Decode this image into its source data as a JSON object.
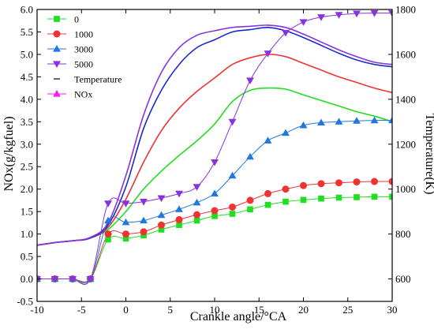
{
  "chart_data": {
    "type": "line",
    "xlabel": "Crankle angle/°CA",
    "ylabel_left": "NOx(g/kgfuel)",
    "ylabel_right": "Temperature(K)",
    "xlim": [
      -10,
      30
    ],
    "ylim_left": [
      -0.5,
      6.0
    ],
    "ylim_right": [
      500,
      1800
    ],
    "x_ticks": [
      -10,
      -5,
      0,
      5,
      10,
      15,
      20,
      25,
      30
    ],
    "y_left_ticks": [
      "-0.5",
      "0.0",
      "0.5",
      "1.0",
      "1.5",
      "2.0",
      "2.5",
      "3.0",
      "3.5",
      "4.0",
      "4.5",
      "5.0",
      "5.5",
      "6.0"
    ],
    "y_right_ticks": [
      600,
      800,
      1000,
      1200,
      1400,
      1600,
      1800
    ],
    "grid": false,
    "legend_position": "top-left",
    "legend": [
      {
        "label": "0",
        "marker": "square",
        "color": "#22dd22"
      },
      {
        "label": "1000",
        "marker": "circle",
        "color": "#ee3333"
      },
      {
        "label": "3000",
        "marker": "triangle-up",
        "color": "#2277dd"
      },
      {
        "label": "5000",
        "marker": "triangle-down",
        "color": "#8833dd"
      },
      {
        "label": "Temperature",
        "marker": "line",
        "color": "#000000"
      },
      {
        "label": "NOx",
        "marker": "triangle-up",
        "color": "#ee22ee"
      }
    ],
    "nox_series": [
      {
        "name": "0",
        "color": "#22dd22",
        "marker": "square",
        "x": [
          -10,
          -8,
          -6,
          -4,
          -2,
          0,
          2,
          4,
          6,
          8,
          10,
          12,
          14,
          16,
          18,
          20,
          22,
          24,
          26,
          28,
          30
        ],
        "y": [
          0.0,
          0.0,
          0.0,
          0.0,
          0.88,
          0.9,
          0.97,
          1.1,
          1.2,
          1.3,
          1.4,
          1.45,
          1.55,
          1.65,
          1.72,
          1.76,
          1.79,
          1.81,
          1.82,
          1.83,
          1.83
        ]
      },
      {
        "name": "1000",
        "color": "#ee3333",
        "marker": "circle",
        "x": [
          -10,
          -8,
          -6,
          -4,
          -2,
          0,
          2,
          4,
          6,
          8,
          10,
          12,
          14,
          16,
          18,
          20,
          22,
          24,
          26,
          28,
          30
        ],
        "y": [
          0.0,
          0.0,
          0.0,
          0.0,
          1.0,
          1.0,
          1.05,
          1.2,
          1.32,
          1.43,
          1.52,
          1.6,
          1.75,
          1.9,
          2.0,
          2.08,
          2.12,
          2.14,
          2.16,
          2.17,
          2.17
        ]
      },
      {
        "name": "3000",
        "color": "#2277dd",
        "marker": "triangle-up",
        "x": [
          -10,
          -8,
          -6,
          -4,
          -2,
          0,
          2,
          4,
          6,
          8,
          10,
          12,
          14,
          16,
          18,
          20,
          22,
          24,
          26,
          28,
          30
        ],
        "y": [
          0.0,
          0.0,
          0.0,
          0.0,
          1.3,
          1.26,
          1.3,
          1.42,
          1.55,
          1.7,
          1.9,
          2.3,
          2.72,
          3.08,
          3.25,
          3.42,
          3.48,
          3.5,
          3.52,
          3.53,
          3.53
        ]
      },
      {
        "name": "5000",
        "color": "#8833dd",
        "marker": "triangle-down",
        "x": [
          -10,
          -8,
          -6,
          -4,
          -2,
          0,
          2,
          4,
          6,
          8,
          10,
          12,
          14,
          16,
          18,
          20,
          22,
          24,
          26,
          28,
          30
        ],
        "y": [
          0.0,
          0.0,
          0.0,
          0.0,
          1.68,
          1.68,
          1.72,
          1.8,
          1.9,
          2.05,
          2.6,
          3.5,
          4.42,
          5.02,
          5.48,
          5.72,
          5.83,
          5.88,
          5.91,
          5.92,
          5.92
        ]
      }
    ],
    "temperature_series": [
      {
        "name": "0",
        "color": "#22dd22",
        "x": [
          -10,
          -8,
          -6,
          -4,
          -2,
          0,
          2,
          4,
          6,
          8,
          10,
          12,
          14,
          16,
          18,
          20,
          22,
          24,
          26,
          28,
          30
        ],
        "y": [
          750,
          762,
          770,
          782,
          820,
          900,
          1000,
          1080,
          1150,
          1215,
          1290,
          1390,
          1440,
          1450,
          1445,
          1420,
          1395,
          1370,
          1345,
          1325,
          1300
        ]
      },
      {
        "name": "1000",
        "color": "#ee3333",
        "x": [
          -10,
          -8,
          -6,
          -4,
          -2,
          0,
          2,
          4,
          6,
          8,
          10,
          12,
          14,
          16,
          18,
          20,
          22,
          24,
          26,
          28,
          30
        ],
        "y": [
          750,
          762,
          770,
          782,
          830,
          955,
          1120,
          1260,
          1360,
          1435,
          1495,
          1555,
          1585,
          1600,
          1590,
          1560,
          1530,
          1500,
          1475,
          1450,
          1430
        ]
      },
      {
        "name": "3000",
        "color": "#1a2acc",
        "x": [
          -10,
          -8,
          -6,
          -4,
          -2,
          0,
          2,
          4,
          6,
          8,
          10,
          12,
          14,
          16,
          18,
          20,
          22,
          24,
          26,
          28,
          30
        ],
        "y": [
          750,
          762,
          770,
          782,
          840,
          1010,
          1270,
          1440,
          1555,
          1630,
          1665,
          1700,
          1710,
          1720,
          1705,
          1675,
          1640,
          1605,
          1575,
          1555,
          1545
        ]
      },
      {
        "name": "5000",
        "color": "#8833dd",
        "x": [
          -10,
          -8,
          -6,
          -4,
          -2,
          0,
          2,
          4,
          6,
          8,
          10,
          12,
          14,
          16,
          18,
          20,
          22,
          24,
          26,
          28,
          30
        ],
        "y": [
          750,
          762,
          770,
          785,
          850,
          1060,
          1330,
          1520,
          1630,
          1685,
          1705,
          1720,
          1725,
          1730,
          1720,
          1690,
          1655,
          1620,
          1590,
          1565,
          1555
        ]
      }
    ]
  }
}
